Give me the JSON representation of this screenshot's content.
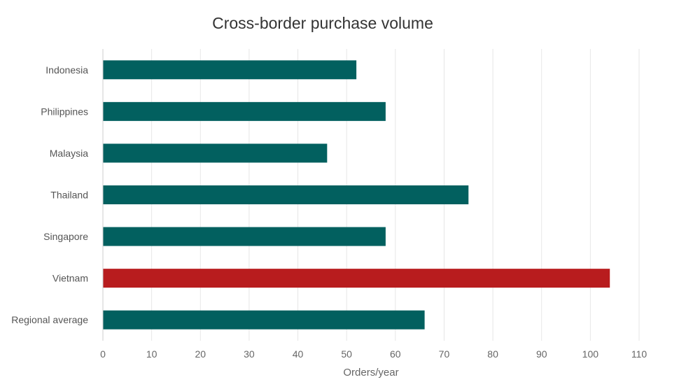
{
  "chart_data": {
    "type": "bar",
    "orientation": "horizontal",
    "title": "Cross-border purchase volume",
    "xlabel": "Orders/year",
    "ylabel": "",
    "categories": [
      "Indonesia",
      "Philippines",
      "Malaysia",
      "Thailand",
      "Singapore",
      "Vietnam",
      "Regional average"
    ],
    "values": [
      52,
      58,
      46,
      75,
      58,
      104,
      66
    ],
    "xlim": [
      0,
      110
    ],
    "xticks": [
      0,
      10,
      20,
      30,
      40,
      50,
      60,
      70,
      80,
      90,
      100,
      110
    ],
    "grid": true,
    "legend": "none",
    "colors": {
      "default": "#02605f",
      "highlight": "#b81c1e"
    },
    "highlight_category": "Vietnam"
  }
}
